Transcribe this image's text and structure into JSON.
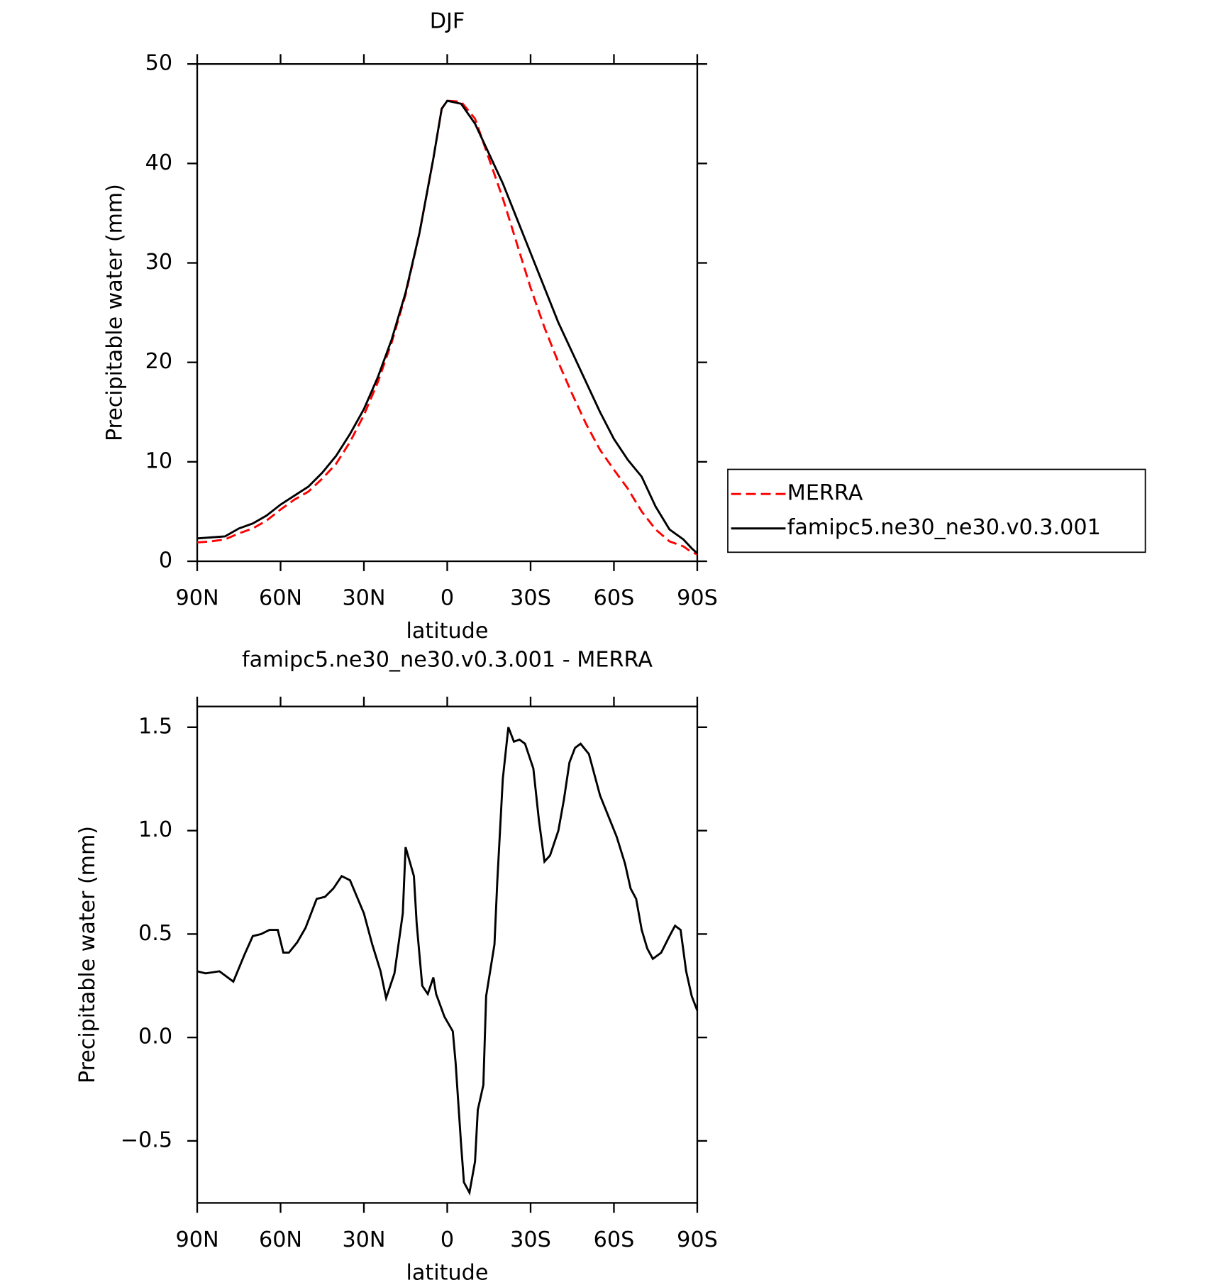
{
  "chart_data": [
    {
      "type": "line",
      "title": "DJF",
      "xlabel": "latitude",
      "ylabel": "Precipitable water (mm)",
      "legend": "right",
      "x": [
        90,
        85,
        80,
        75,
        70,
        65,
        60,
        55,
        50,
        45,
        40,
        35,
        30,
        25,
        20,
        15,
        10,
        5,
        2,
        0,
        -5,
        -10,
        -15,
        -20,
        -25,
        -30,
        -35,
        -40,
        -45,
        -50,
        -55,
        -60,
        -65,
        -70,
        -75,
        -80,
        -85,
        -88,
        -90
      ],
      "series": [
        {
          "name": "MERRA",
          "color": "#ff0000",
          "style": "dashed",
          "values": [
            1.9,
            2.0,
            2.2,
            2.8,
            3.3,
            4.1,
            5.2,
            6.2,
            7.0,
            8.3,
            9.8,
            12,
            14.7,
            18,
            22,
            26.8,
            33,
            40.5,
            45.5,
            46.3,
            46.2,
            44.5,
            40.5,
            36.5,
            32,
            27.5,
            23.5,
            20,
            16.8,
            13.8,
            11.2,
            9.2,
            7.3,
            5,
            3.2,
            2,
            1.5,
            0.9,
            0.7
          ]
        },
        {
          "name": "famipc5.ne30_ne30.v0.3.001",
          "color": "#000000",
          "style": "solid",
          "values": [
            2.3,
            2.4,
            2.5,
            3.3,
            3.8,
            4.6,
            5.7,
            6.6,
            7.5,
            8.9,
            10.6,
            12.8,
            15.3,
            18.5,
            22.3,
            27,
            33,
            40.5,
            45.5,
            46.3,
            46,
            44,
            41,
            38,
            34.5,
            31,
            27.5,
            24,
            21,
            18,
            15,
            12.3,
            10.2,
            8.5,
            5.5,
            3.2,
            2.2,
            1.3,
            0.8
          ]
        }
      ],
      "xlim": [
        90,
        -90
      ],
      "xticks": [
        {
          "value": 90,
          "label": "90N"
        },
        {
          "value": 60,
          "label": "60N"
        },
        {
          "value": 30,
          "label": "30N"
        },
        0,
        {
          "value": -30,
          "label": "30S"
        },
        {
          "value": -60,
          "label": "60S"
        },
        {
          "value": -90,
          "label": "90S"
        }
      ],
      "ylim": [
        0,
        50
      ],
      "yticks": [
        0,
        10,
        20,
        30,
        40,
        50
      ]
    },
    {
      "type": "line",
      "title": "famipc5.ne30_ne30.v0.3.001 - MERRA",
      "xlabel": "latitude",
      "ylabel": "Precipitable water (mm)",
      "x": [
        90,
        87,
        82,
        77,
        73,
        70,
        67,
        64,
        61,
        59,
        57,
        54,
        51,
        47,
        44,
        41,
        38,
        35,
        30,
        27,
        24,
        22,
        19,
        16,
        15,
        12,
        11,
        9,
        7,
        5,
        4,
        1,
        -2,
        -3,
        -5,
        -6,
        -8,
        -10,
        -11,
        -13,
        -14,
        -17,
        -18,
        -20,
        -22,
        -24,
        -26,
        -28,
        -31,
        -33,
        -35,
        -37,
        -40,
        -42,
        -44,
        -46,
        -48,
        -51,
        -53,
        -55,
        -58,
        -61,
        -64,
        -66,
        -68,
        -70,
        -72,
        -74,
        -77,
        -80,
        -82,
        -84,
        -86,
        -88,
        -90
      ],
      "series": [
        {
          "name": "famipc5.ne30_ne30.v0.3.001 - MERRA",
          "color": "#000000",
          "style": "solid",
          "values": [
            0.32,
            0.31,
            0.32,
            0.27,
            0.4,
            0.49,
            0.5,
            0.52,
            0.52,
            0.41,
            0.41,
            0.46,
            0.53,
            0.67,
            0.68,
            0.72,
            0.78,
            0.76,
            0.6,
            0.45,
            0.32,
            0.19,
            0.31,
            0.6,
            0.92,
            0.78,
            0.55,
            0.25,
            0.21,
            0.29,
            0.21,
            0.1,
            0.03,
            -0.12,
            -0.52,
            -0.7,
            -0.75,
            -0.6,
            -0.35,
            -0.23,
            0.2,
            0.45,
            0.75,
            1.25,
            1.5,
            1.43,
            1.44,
            1.42,
            1.3,
            1.05,
            0.85,
            0.88,
            1.0,
            1.15,
            1.33,
            1.4,
            1.42,
            1.37,
            1.27,
            1.17,
            1.07,
            0.97,
            0.84,
            0.72,
            0.67,
            0.52,
            0.43,
            0.38,
            0.41,
            0.49,
            0.54,
            0.52,
            0.32,
            0.2,
            0.13
          ]
        }
      ],
      "xlim": [
        90,
        -90
      ],
      "xticks": [
        {
          "value": 90,
          "label": "90N"
        },
        {
          "value": 60,
          "label": "60N"
        },
        {
          "value": 30,
          "label": "30N"
        },
        0,
        {
          "value": -30,
          "label": "30S"
        },
        {
          "value": -60,
          "label": "60S"
        },
        {
          "value": -90,
          "label": "90S"
        }
      ],
      "ylim": [
        -0.8,
        1.6
      ],
      "yticks": [
        {
          "value": -0.5,
          "label": "−0.5"
        },
        {
          "value": 0,
          "label": "0.0"
        },
        {
          "value": 0.5,
          "label": "0.5"
        },
        {
          "value": 1,
          "label": "1.0"
        },
        1.5
      ]
    }
  ]
}
